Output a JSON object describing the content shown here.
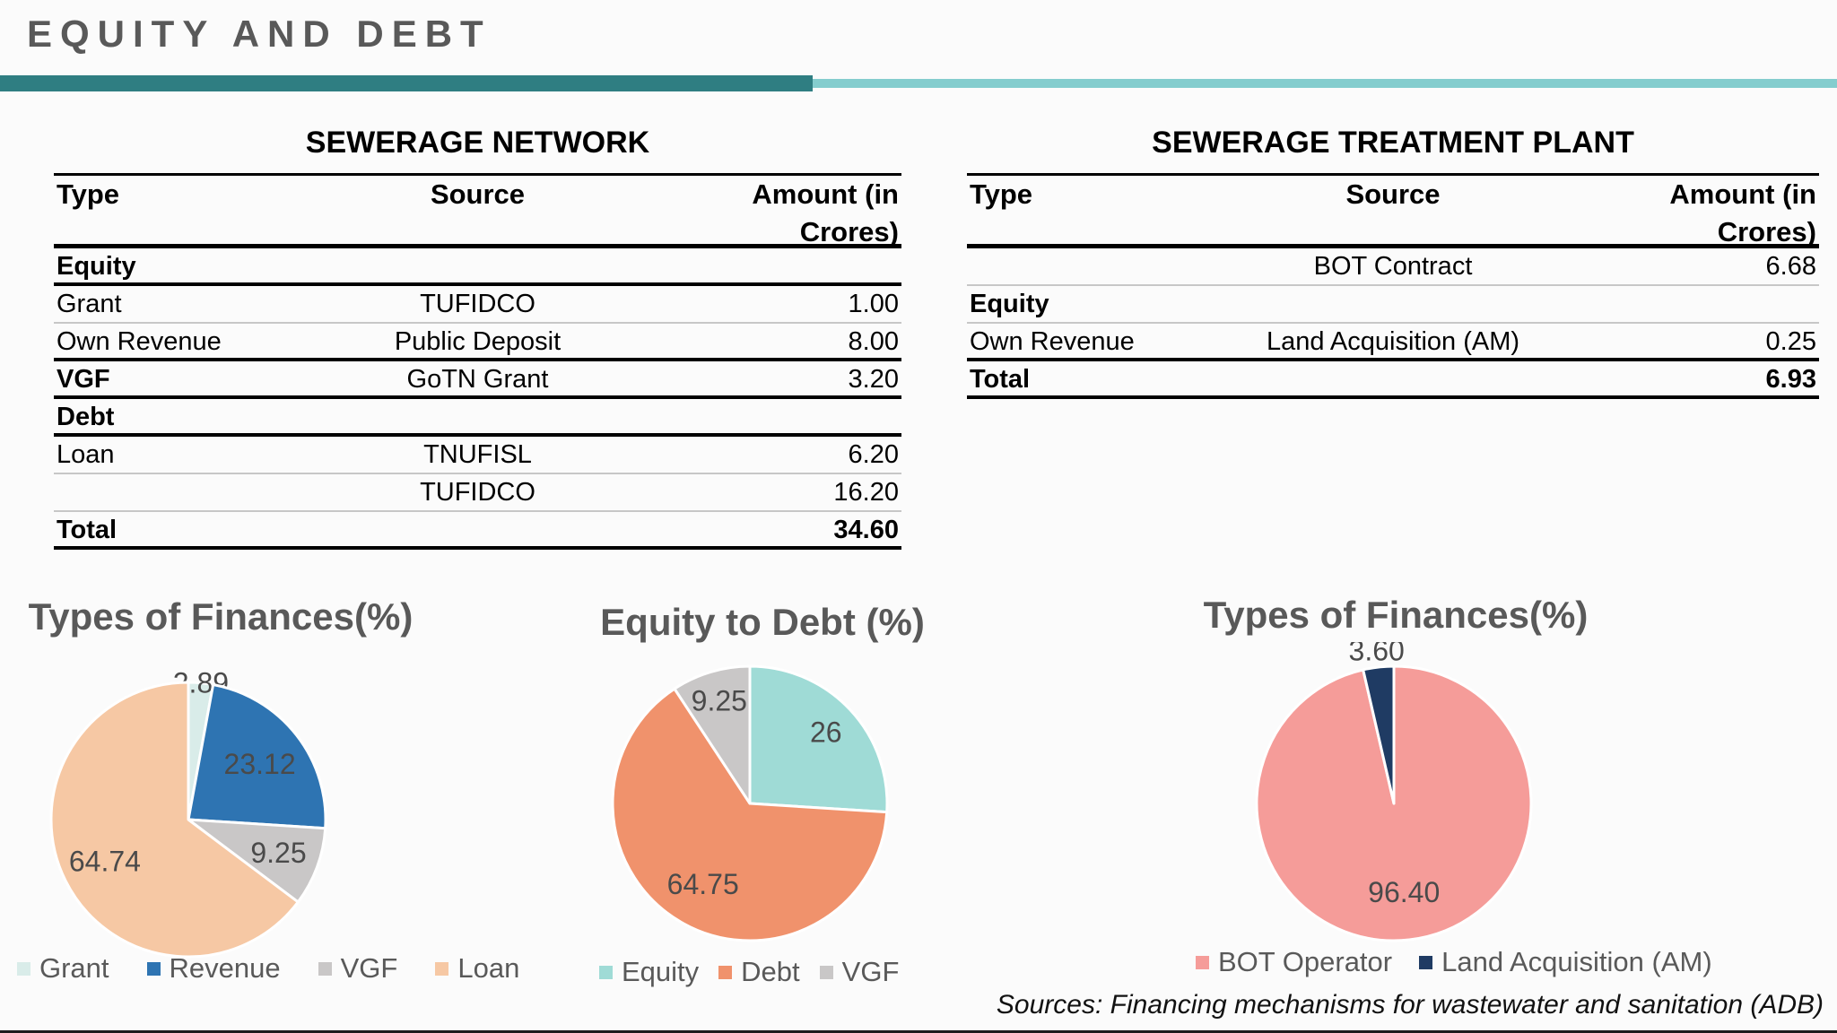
{
  "page": {
    "title": "EQUITY AND DEBT"
  },
  "theme": {
    "accent_bar_dark": "#2F7E82",
    "accent_bar_light": "#84CDCE",
    "heading_text": "#595959",
    "table_rule_thick": "#000000",
    "table_rule_thin": "#C7C7C7"
  },
  "tables": {
    "network": {
      "title": "SEWERAGE NETWORK",
      "columns": [
        "Type",
        "Source",
        "Amount (in Crores)"
      ],
      "rows": [
        {
          "type": "Equity",
          "source": "",
          "amount": "",
          "bold": "type",
          "rule": "thick"
        },
        {
          "type": "Grant",
          "source": "TUFIDCO",
          "amount": "1.00",
          "bold": "none",
          "rule": "thin"
        },
        {
          "type": "Own Revenue",
          "source": "Public Deposit",
          "amount": "8.00",
          "bold": "none",
          "rule": "thick"
        },
        {
          "type": "VGF",
          "source": "GoTN Grant",
          "amount": "3.20",
          "bold": "type",
          "rule": "thick"
        },
        {
          "type": "Debt",
          "source": "",
          "amount": "",
          "bold": "type",
          "rule": "thick"
        },
        {
          "type": "Loan",
          "source": "TNUFISL",
          "amount": "6.20",
          "bold": "none",
          "rule": "thin"
        },
        {
          "type": "",
          "source": "TUFIDCO",
          "amount": "16.20",
          "bold": "none",
          "rule": "thin"
        },
        {
          "type": "Total",
          "source": "",
          "amount": "34.60",
          "bold": "all",
          "rule": "thick"
        }
      ]
    },
    "plant": {
      "title": "SEWERAGE TREATMENT PLANT",
      "columns": [
        "Type",
        "Source",
        "Amount (in Crores)"
      ],
      "rows": [
        {
          "type": "",
          "source": "BOT Contract",
          "amount": "6.68",
          "bold": "none",
          "rule": "thin"
        },
        {
          "type": "Equity",
          "source": "",
          "amount": "",
          "bold": "type",
          "rule": "thin"
        },
        {
          "type": "Own Revenue",
          "source": "Land Acquisition (AM)",
          "amount": "0.25",
          "bold": "none",
          "rule": "thick"
        },
        {
          "type": "Total",
          "source": "",
          "amount": "6.93",
          "bold": "all",
          "rule": "thick"
        }
      ]
    }
  },
  "chart_data": [
    {
      "type": "pie",
      "title": "Types of Finances(%)",
      "labels": [
        "Grant",
        "Revenue",
        "VGF",
        "Loan"
      ],
      "values": [
        2.89,
        23.12,
        9.25,
        64.74
      ],
      "data_labels": [
        "2.89",
        "23.12",
        "9.25",
        "64.74"
      ],
      "colors": [
        "#D9ECE9",
        "#2E74B2",
        "#C9C7C7",
        "#F6C8A4"
      ],
      "legend_position": "bottom",
      "start_angle_deg": 0,
      "direction": "clockwise"
    },
    {
      "type": "pie",
      "title": "Equity to Debt (%)",
      "labels": [
        "Equity",
        "Debt",
        "VGF"
      ],
      "values": [
        26,
        64.75,
        9.25
      ],
      "data_labels": [
        "26",
        "64.75",
        "9.25"
      ],
      "colors": [
        "#9FDBD6",
        "#F0926C",
        "#C9C7C7"
      ],
      "legend_position": "bottom",
      "start_angle_deg": 0,
      "direction": "clockwise"
    },
    {
      "type": "pie",
      "title": "Types of Finances(%)",
      "labels": [
        "BOT Operator",
        "Land Acquisition (AM)"
      ],
      "values": [
        96.4,
        3.6
      ],
      "data_labels": [
        "96.40",
        "3.60"
      ],
      "colors": [
        "#F59C99",
        "#1F3B63"
      ],
      "legend_position": "bottom",
      "start_angle_deg": 0,
      "direction": "clockwise"
    }
  ],
  "footer": {
    "source_note": "Sources: Financing mechanisms for wastewater and sanitation (ADB)"
  }
}
